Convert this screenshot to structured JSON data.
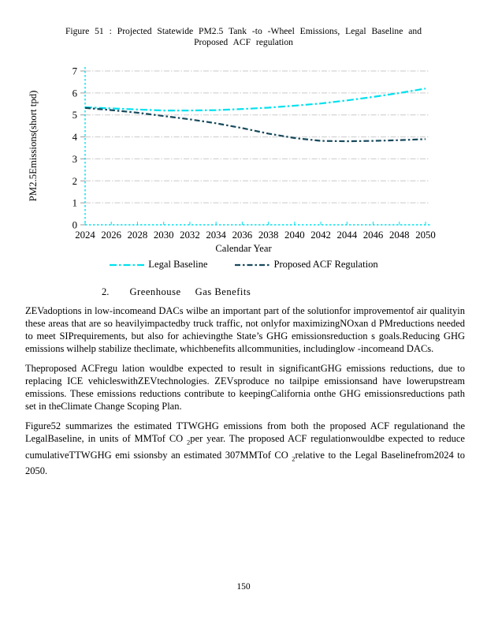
{
  "figure": {
    "title_line1": "Figure 51 : Projected Statewide PM2.5 Tank -to -Wheel Emissions, Legal Baseline and",
    "title_line2": "Proposed ACF regulation"
  },
  "chart_data": {
    "type": "line",
    "title": "Projected Statewide PM2.5 Tank-to-Wheel Emissions, Legal Baseline and Proposed ACF regulation",
    "xlabel": "Calendar Year",
    "ylabel": "PM2.5Emissions(short tpd)",
    "xlim": [
      2024,
      2050
    ],
    "ylim": [
      0,
      7
    ],
    "x_ticks": [
      2024,
      2026,
      2028,
      2030,
      2032,
      2034,
      2036,
      2038,
      2040,
      2042,
      2044,
      2046,
      2048,
      2050
    ],
    "y_ticks": [
      0,
      1,
      2,
      3,
      4,
      5,
      6,
      7
    ],
    "grid": true,
    "legend_position": "bottom",
    "grid_color": "#c9c9c9",
    "axis_color": "#00e1ee",
    "tick_color": "#9a9a9a",
    "x": [
      2024,
      2026,
      2028,
      2030,
      2032,
      2034,
      2036,
      2038,
      2040,
      2042,
      2044,
      2046,
      2048,
      2050
    ],
    "series": [
      {
        "name": "Legal Baseline",
        "color": "#00e1ee",
        "dash": "9 3 2.5 3",
        "values": [
          5.35,
          5.3,
          5.25,
          5.2,
          5.2,
          5.22,
          5.27,
          5.33,
          5.42,
          5.52,
          5.66,
          5.82,
          6.0,
          6.2
        ]
      },
      {
        "name": "Proposed ACF Regulation",
        "color": "#17495c",
        "dash": "7 3 2.5 3",
        "values": [
          5.32,
          5.22,
          5.1,
          4.95,
          4.8,
          4.62,
          4.4,
          4.15,
          3.95,
          3.82,
          3.8,
          3.82,
          3.85,
          3.9
        ]
      }
    ]
  },
  "section": {
    "number": "2.",
    "title_word1": "Greenhouse",
    "title_word2": "Gas Benefits"
  },
  "paragraphs": {
    "p1": "ZEVadoptions in low-incomeand DACs wilbe an important part of the solutionfor improvementof air qualityin these areas that are so heavilyimpactedby truck traffic, not onlyfor maximizingNOxan d PMreductions needed to meet SIPrequirements, but also for achievingthe State’s GHG emissionsreduction s goals.Reducing GHG emissions wilhelp stabilize theclimate, whichbenefits allcommunities, includinglow -incomeand DACs.",
    "p2": "Theproposed ACFregu lation wouldbe expected to result in significantGHG emissions reductions, due to replacing ICE vehicleswithZEVtechnologies. ZEVsproduce no tailpipe emissionsand have lowerupstream emissions. These emissions reductions contribute to keepingCalifornia onthe GHG emissionsreductions path set in theClimate Change Scoping Plan.",
    "p3_part1": "Figure52 summarizes the estimated TTWGHG emissions from both the proposed ACF regulationand the LegalBaseline, in units of MMTof CO ",
    "p3_sub1": "2",
    "p3_part2": "per year. The proposed ACF regulationwouldbe expected to reduce cumulativeTTWGHG emi ssionsby an estimated 307MMTof CO ",
    "p3_sub2": "2",
    "p3_part3": "relative to the Legal Baselinefrom2024 to 2050."
  },
  "page": {
    "number": "150"
  }
}
